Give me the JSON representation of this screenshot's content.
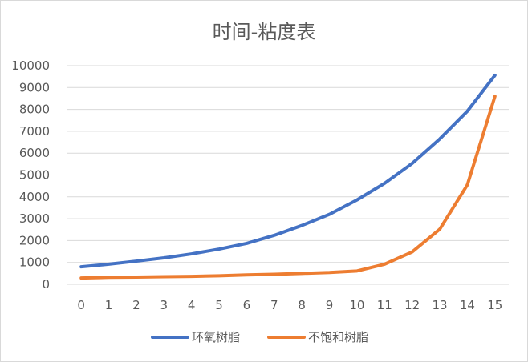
{
  "chart_data": {
    "type": "line",
    "title": "时间-粘度表",
    "x": [
      "0",
      "1",
      "2",
      "3",
      "4",
      "5",
      "6",
      "7",
      "8",
      "9",
      "10",
      "11",
      "12",
      "13",
      "14",
      "15"
    ],
    "ylim": [
      0,
      10000
    ],
    "yticks": [
      0,
      1000,
      2000,
      3000,
      4000,
      5000,
      6000,
      7000,
      8000,
      9000,
      10000
    ],
    "grid": true,
    "legend_position": "bottom",
    "series": [
      {
        "name": "环氧树脂",
        "color": "#4472C4",
        "values": [
          800,
          920,
          1060,
          1210,
          1390,
          1610,
          1870,
          2240,
          2690,
          3200,
          3860,
          4620,
          5530,
          6650,
          7920,
          9560
        ]
      },
      {
        "name": "不饱和树脂",
        "color": "#ED7D31",
        "values": [
          290,
          320,
          330,
          350,
          360,
          390,
          430,
          460,
          500,
          540,
          610,
          920,
          1480,
          2520,
          4550,
          8600
        ]
      }
    ]
  }
}
